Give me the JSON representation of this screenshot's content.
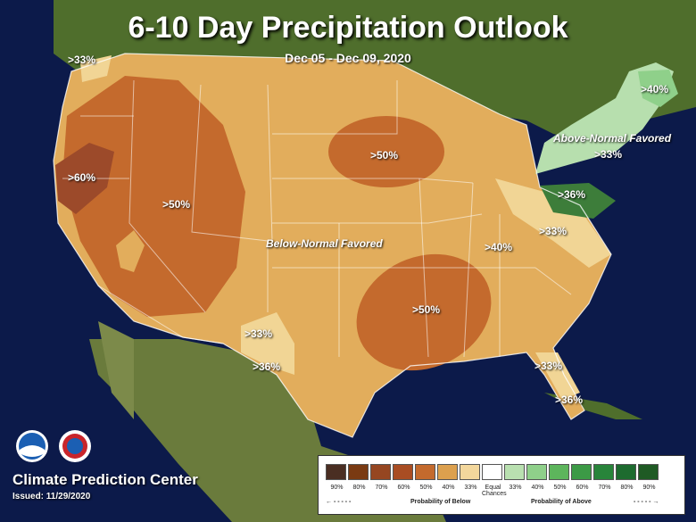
{
  "title": "6-10 Day Precipitation Outlook",
  "dates": "Dec 05 - Dec 09, 2020",
  "labels": {
    "west": ">60%",
    "great_basin": ">50%",
    "northwest_coast": ">33%",
    "midwest": ">50%",
    "south_central": ">50%",
    "ohio_valley": ">40%",
    "southeast": ">33%",
    "new_england": ">40%",
    "northeast": ">33%",
    "mid_atlantic": ">36%",
    "texas_west": ">33%",
    "texas_south": ">36%",
    "florida_north": ">33%",
    "florida_south": ">36%"
  },
  "regions": {
    "below": "Below-Normal Favored",
    "above": "Above-Normal Favored"
  },
  "footer": {
    "center": "Climate Prediction Center",
    "issued": "Issued: 11/29/2020"
  },
  "legend": {
    "ticks": [
      "90%",
      "80%",
      "70%",
      "60%",
      "50%",
      "40%",
      "33%",
      "Equal Chances",
      "33%",
      "40%",
      "50%",
      "60%",
      "70%",
      "80%",
      "90%"
    ],
    "colors": [
      "#4a2e22",
      "#7a3a12",
      "#964621",
      "#a94d23",
      "#c46a2d",
      "#dca04e",
      "#f3d79c",
      "#ffffff",
      "#b9e0b0",
      "#8fd08a",
      "#5db55c",
      "#3c9a46",
      "#28843a",
      "#1d6b2f",
      "#1f5a24"
    ],
    "below_label": "Probability of Below",
    "above_label": "Probability of Above"
  },
  "colors": {
    "ocean": "#0c1a4a",
    "land": "#54742e",
    "lightbrown": "#e2ad5c",
    "medbrown": "#cd7a39",
    "darkbrown": "#9c4a2a",
    "lightgreen": "#b7dfae",
    "green": "#3d7d3a"
  }
}
